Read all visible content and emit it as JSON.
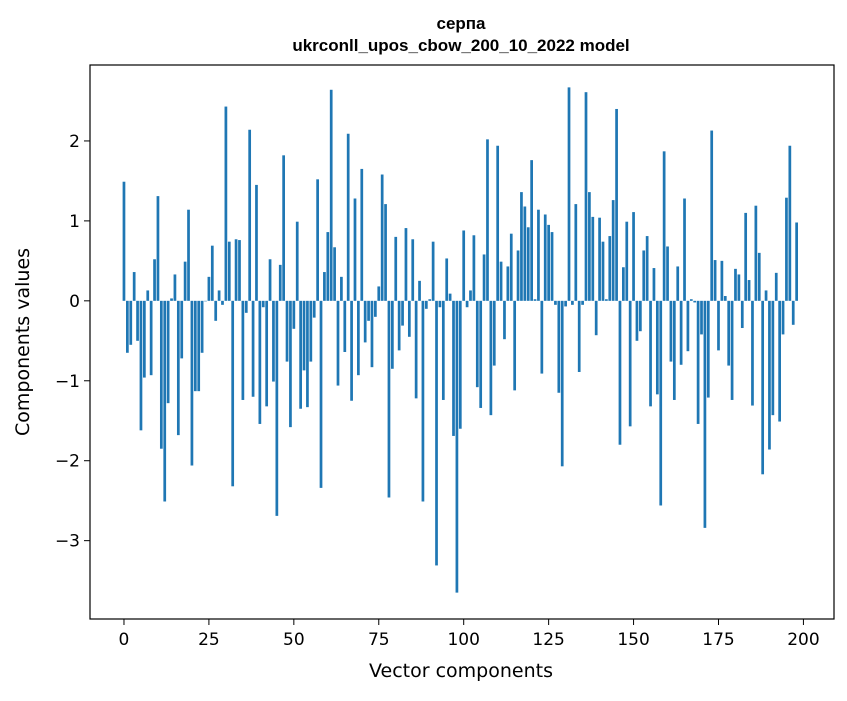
{
  "chart_data": {
    "type": "bar",
    "title_line1": "серпа",
    "title_line2": "ukrconll_upos_cbow_200_10_2022 model",
    "xlabel": "Vector components",
    "ylabel": "Components values",
    "xlim": [
      -10,
      209
    ],
    "ylim": [
      -3.98,
      2.95
    ],
    "xticks": [
      0,
      25,
      50,
      75,
      100,
      125,
      150,
      175,
      200
    ],
    "xtick_labels": [
      "0",
      "25",
      "50",
      "75",
      "100",
      "125",
      "150",
      "175",
      "200"
    ],
    "yticks": [
      -3,
      -2,
      -1,
      0,
      1,
      2
    ],
    "ytick_labels": [
      "−3",
      "−2",
      "−1",
      "0",
      "1",
      "2"
    ],
    "grid": false,
    "bar_color": "#1f77b4",
    "values": [
      1.49,
      -0.65,
      -0.55,
      0.36,
      -0.5,
      -1.62,
      -0.96,
      0.13,
      -0.93,
      0.52,
      1.31,
      -1.85,
      -2.51,
      -1.28,
      0.03,
      0.33,
      -1.68,
      -0.72,
      0.49,
      1.14,
      -2.06,
      -1.13,
      -1.13,
      -0.65,
      0.0,
      0.3,
      0.69,
      -0.25,
      0.13,
      -0.05,
      2.43,
      0.74,
      -2.32,
      0.77,
      0.76,
      -1.24,
      -0.15,
      2.14,
      -1.2,
      1.45,
      -1.54,
      -0.08,
      -1.32,
      0.52,
      -1.01,
      -2.69,
      0.45,
      1.82,
      -0.76,
      -1.58,
      -0.35,
      0.99,
      -1.35,
      -0.87,
      -1.33,
      -0.76,
      -0.21,
      1.52,
      -2.34,
      0.36,
      0.86,
      2.64,
      0.67,
      -1.06,
      0.3,
      -0.64,
      2.09,
      -1.25,
      1.28,
      -0.93,
      1.65,
      -0.52,
      -0.25,
      -0.83,
      -0.2,
      0.18,
      1.58,
      1.21,
      -2.46,
      -0.85,
      0.8,
      -0.62,
      -0.31,
      0.91,
      -0.45,
      0.77,
      -1.22,
      0.25,
      -2.51,
      -0.1,
      0.02,
      0.74,
      -3.31,
      -0.08,
      -1.24,
      0.53,
      0.09,
      -1.69,
      -3.65,
      -1.6,
      0.88,
      -0.08,
      0.13,
      0.82,
      -1.08,
      -1.34,
      0.58,
      2.02,
      -1.43,
      -0.81,
      1.94,
      0.49,
      -0.48,
      0.43,
      0.84,
      -1.12,
      0.63,
      1.36,
      1.18,
      0.92,
      1.76,
      0.02,
      1.14,
      -0.91,
      1.08,
      0.95,
      0.86,
      -0.05,
      -1.15,
      -2.07,
      -0.07,
      2.67,
      -0.05,
      1.21,
      -0.89,
      -0.05,
      2.61,
      1.36,
      1.05,
      -0.43,
      1.04,
      0.74,
      0.02,
      0.81,
      1.26,
      2.4,
      -1.8,
      0.42,
      0.99,
      -1.57,
      1.11,
      -0.5,
      -0.38,
      0.63,
      0.81,
      -1.32,
      0.41,
      -1.17,
      -2.56,
      1.87,
      0.68,
      -0.76,
      -1.24,
      0.43,
      -0.8,
      1.28,
      -0.63,
      0.02,
      -0.02,
      -1.54,
      -0.42,
      -2.84,
      -1.21,
      2.13,
      0.51,
      -0.62,
      0.5,
      0.06,
      -0.81,
      -1.24,
      0.4,
      0.33,
      -0.34,
      1.1,
      0.26,
      -1.31,
      1.19,
      0.6,
      -2.17,
      0.13,
      -1.86,
      -1.43,
      0.35,
      -1.51,
      -0.42,
      1.29,
      1.94,
      -0.3,
      0.98
    ]
  }
}
